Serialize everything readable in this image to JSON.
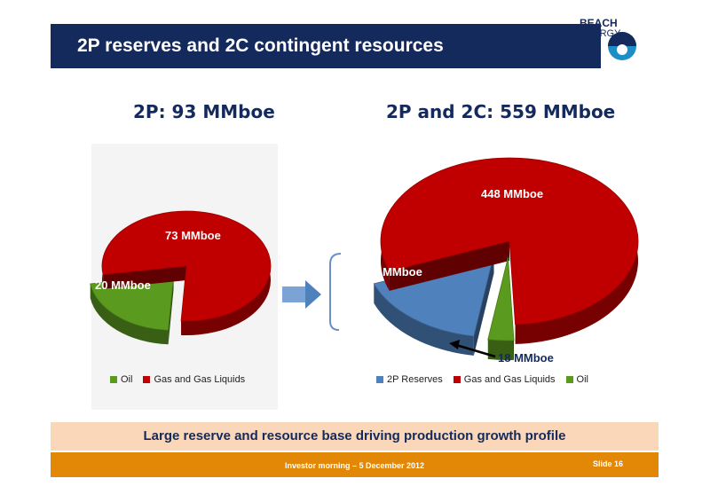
{
  "header": {
    "title": "2P reserves and 2C contingent resources"
  },
  "logo": {
    "line1": "BEACH",
    "line2": "ENERGY"
  },
  "colors": {
    "navy": "#142a5c",
    "red": "#c00000",
    "green": "#5a9a1e",
    "blue": "#4f81bd",
    "orange": "#e38806",
    "peach": "#fad7b8"
  },
  "chart_data": [
    {
      "type": "pie",
      "title": "2P: 93 MMboe",
      "categories": [
        "Oil",
        "Gas and Gas Liquids"
      ],
      "values": [
        20,
        73
      ],
      "data_labels": [
        "20 MMboe",
        "73 MMboe"
      ],
      "colors": [
        "#5a9a1e",
        "#c00000"
      ],
      "legend_position": "bottom",
      "exploded": [
        "Oil"
      ]
    },
    {
      "type": "pie",
      "title": "2P and 2C: 559 MMboe",
      "categories": [
        "2P Reserves",
        "Gas and Gas Liquids",
        "Oil"
      ],
      "values": [
        93,
        448,
        18
      ],
      "data_labels": [
        "93 MMboe",
        "448 MMboe",
        "18 MMboe"
      ],
      "colors": [
        "#4f81bd",
        "#c00000",
        "#5a9a1e"
      ],
      "legend_position": "bottom",
      "exploded": [
        "2P Reserves",
        "Oil"
      ]
    }
  ],
  "banner": {
    "text": "Large reserve and resource base driving production growth profile"
  },
  "footer": {
    "text": "Investor morning – 5 December 2012",
    "slide": "Slide 16"
  },
  "icons": {
    "arrow": "right-arrow-icon",
    "bracket": "bracket-icon",
    "pointer": "pointer-arrow-icon"
  }
}
